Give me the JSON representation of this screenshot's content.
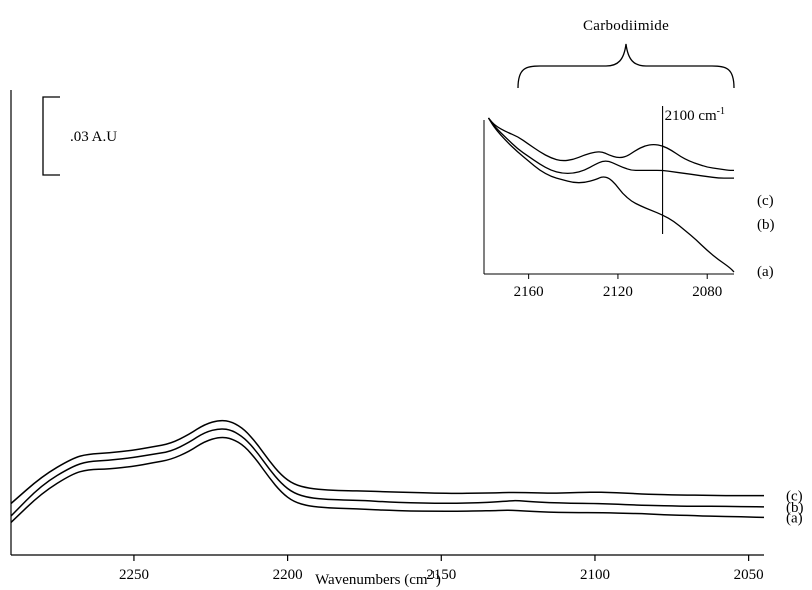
{
  "chart_data": [
    {
      "type": "line",
      "title": "",
      "xlabel": "Wavenumbers (cm",
      "xlabel_sup": "-1",
      "xlabel_close": ")",
      "xlim": [
        2290,
        2045
      ],
      "x_reversed": true,
      "xticks": [
        2250,
        2200,
        2150,
        2100,
        2050
      ],
      "ylabel": "",
      "grid": false,
      "scale_bar_label": ".03 A.U",
      "scale_bar_value": 0.03,
      "series": [
        {
          "name": "(a)",
          "x": [
            2290,
            2280,
            2270,
            2265,
            2258,
            2250,
            2244,
            2238,
            2232,
            2227,
            2222,
            2218,
            2214,
            2210,
            2206,
            2202,
            2198,
            2193,
            2187,
            2180,
            2175,
            2168,
            2160,
            2152,
            2145,
            2138,
            2133,
            2130,
            2127,
            2123,
            2118,
            2112,
            2105,
            2100,
            2095,
            2090,
            2085,
            2080,
            2075,
            2070,
            2065,
            2060,
            2055,
            2050,
            2045
          ],
          "y": [
            -0.0046,
            0.0164,
            0.0302,
            0.0331,
            0.0336,
            0.0355,
            0.0379,
            0.0403,
            0.0461,
            0.0533,
            0.0566,
            0.0552,
            0.0499,
            0.0398,
            0.0274,
            0.0168,
            0.0101,
            0.007,
            0.0058,
            0.0053,
            0.0048,
            0.0041,
            0.0036,
            0.0034,
            0.0034,
            0.0036,
            0.0038,
            0.0041,
            0.0041,
            0.0036,
            0.0029,
            0.0026,
            0.0024,
            0.0024,
            0.0022,
            0.0019,
            0.0017,
            0.0012,
            0.0007,
            0.0005,
            0.0,
            -0.0002,
            -0.0005,
            -0.0007,
            -0.001
          ]
        },
        {
          "name": "(b)",
          "x": [
            2290,
            2280,
            2270,
            2265,
            2258,
            2250,
            2244,
            2238,
            2232,
            2227,
            2222,
            2218,
            2214,
            2210,
            2206,
            2202,
            2198,
            2193,
            2187,
            2180,
            2175,
            2168,
            2160,
            2152,
            2145,
            2138,
            2132,
            2128,
            2125,
            2121,
            2115,
            2108,
            2100,
            2095,
            2090,
            2085,
            2080,
            2075,
            2070,
            2065,
            2060,
            2055,
            2050,
            2045
          ],
          "y": [
            0.0,
            0.0223,
            0.0355,
            0.0389,
            0.0398,
            0.0418,
            0.044,
            0.0461,
            0.0526,
            0.0598,
            0.0626,
            0.0612,
            0.0557,
            0.0458,
            0.0336,
            0.023,
            0.0163,
            0.013,
            0.0118,
            0.0113,
            0.011,
            0.0101,
            0.0094,
            0.0091,
            0.0091,
            0.0094,
            0.0101,
            0.0108,
            0.011,
            0.0103,
            0.0096,
            0.0091,
            0.0089,
            0.0086,
            0.0082,
            0.0077,
            0.0074,
            0.0072,
            0.007,
            0.007,
            0.007,
            0.0067,
            0.0067,
            0.0065
          ]
        },
        {
          "name": "(c)",
          "x": [
            2290,
            2280,
            2270,
            2265,
            2258,
            2250,
            2244,
            2238,
            2232,
            2227,
            2222,
            2218,
            2214,
            2210,
            2206,
            2202,
            2198,
            2193,
            2187,
            2180,
            2175,
            2168,
            2160,
            2152,
            2145,
            2138,
            2132,
            2128,
            2125,
            2120,
            2114,
            2108,
            2103,
            2100,
            2096,
            2090,
            2085,
            2080,
            2075,
            2070,
            2065,
            2060,
            2055,
            2050,
            2045
          ],
          "y": [
            0.0089,
            0.0283,
            0.0413,
            0.0442,
            0.0451,
            0.047,
            0.0494,
            0.0518,
            0.0583,
            0.0655,
            0.0686,
            0.0672,
            0.0617,
            0.0518,
            0.0394,
            0.029,
            0.0226,
            0.0197,
            0.0185,
            0.018,
            0.0178,
            0.0173,
            0.0168,
            0.0163,
            0.0161,
            0.0163,
            0.0166,
            0.0168,
            0.0168,
            0.0166,
            0.0163,
            0.0166,
            0.017,
            0.017,
            0.0168,
            0.0163,
            0.0158,
            0.0154,
            0.0151,
            0.0149,
            0.0149,
            0.0146,
            0.0146,
            0.0146,
            0.0146
          ]
        }
      ]
    },
    {
      "type": "line",
      "title": "Carbodiimide",
      "subtitle": "inset",
      "xlabel": "",
      "ylabel": "",
      "xlim": [
        2180,
        2068
      ],
      "x_reversed": true,
      "xticks": [
        2160,
        2120,
        2080
      ],
      "marker_line_x": 2100,
      "marker_label": "2100 cm",
      "marker_label_sup": "-1",
      "series": [
        {
          "name": "(a)",
          "x": [
            2178,
            2175,
            2170,
            2165,
            2160,
            2155,
            2150,
            2145,
            2140,
            2135,
            2130,
            2127,
            2124,
            2121,
            2118,
            2114,
            2110,
            2105,
            2100,
            2095,
            2090,
            2085,
            2080,
            2075,
            2070,
            2068
          ],
          "y": [
            1.0,
            0.93,
            0.85,
            0.78,
            0.72,
            0.66,
            0.62,
            0.6,
            0.58,
            0.58,
            0.6,
            0.62,
            0.61,
            0.57,
            0.51,
            0.46,
            0.43,
            0.4,
            0.37,
            0.33,
            0.27,
            0.21,
            0.14,
            0.08,
            0.03,
            0.0
          ]
        },
        {
          "name": "(b)",
          "x": [
            2178,
            2175,
            2170,
            2165,
            2160,
            2155,
            2150,
            2145,
            2140,
            2135,
            2130,
            2127,
            2124,
            2121,
            2118,
            2114,
            2110,
            2105,
            2100,
            2095,
            2090,
            2085,
            2080,
            2075,
            2070,
            2068
          ],
          "y": [
            1.0,
            0.94,
            0.87,
            0.8,
            0.75,
            0.7,
            0.66,
            0.64,
            0.64,
            0.66,
            0.7,
            0.72,
            0.72,
            0.7,
            0.68,
            0.66,
            0.66,
            0.66,
            0.66,
            0.65,
            0.64,
            0.63,
            0.62,
            0.61,
            0.61,
            0.61
          ]
        },
        {
          "name": "(c)",
          "x": [
            2178,
            2175,
            2170,
            2165,
            2160,
            2155,
            2150,
            2145,
            2140,
            2135,
            2130,
            2127,
            2124,
            2120,
            2116,
            2112,
            2108,
            2104,
            2100,
            2096,
            2092,
            2088,
            2084,
            2080,
            2075,
            2070,
            2068
          ],
          "y": [
            1.0,
            0.95,
            0.91,
            0.88,
            0.83,
            0.78,
            0.74,
            0.72,
            0.73,
            0.76,
            0.78,
            0.78,
            0.76,
            0.74,
            0.75,
            0.79,
            0.82,
            0.83,
            0.82,
            0.79,
            0.75,
            0.72,
            0.7,
            0.68,
            0.67,
            0.66,
            0.66
          ]
        }
      ]
    }
  ]
}
